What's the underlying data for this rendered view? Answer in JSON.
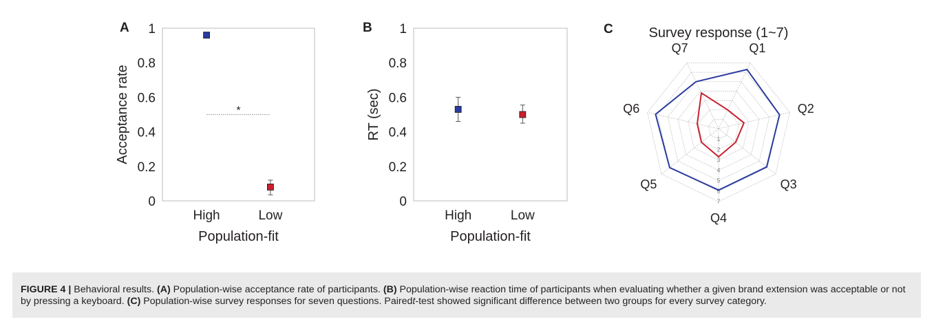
{
  "chart_data": [
    {
      "panel_label": "A",
      "type": "scatter",
      "categories": [
        "High",
        "Low"
      ],
      "series": [
        {
          "category": "High",
          "value": 0.96,
          "error_low": 0.945,
          "error_high": 0.975,
          "color": "#2a3a9e"
        },
        {
          "category": "Low",
          "value": 0.08,
          "error_low": 0.035,
          "error_high": 0.12,
          "color": "#c8202f"
        }
      ],
      "xlabel": "Population-fit",
      "ylabel": "Acceptance rate",
      "ylim": [
        0,
        1
      ],
      "yticks": [
        "0",
        "0.2",
        "0.4",
        "0.6",
        "0.8",
        "1"
      ],
      "significance": {
        "marker": "*",
        "y": 0.5
      },
      "grid": false
    },
    {
      "panel_label": "B",
      "type": "scatter",
      "categories": [
        "High",
        "Low"
      ],
      "series": [
        {
          "category": "High",
          "value": 0.53,
          "error_low": 0.46,
          "error_high": 0.6,
          "color": "#2a3a9e"
        },
        {
          "category": "Low",
          "value": 0.5,
          "error_low": 0.45,
          "error_high": 0.555,
          "color": "#c8202f"
        }
      ],
      "xlabel": "Population-fit",
      "ylabel": "RT (sec)",
      "ylim": [
        0,
        1
      ],
      "yticks": [
        "0",
        "0.2",
        "0.4",
        "0.6",
        "0.8",
        "1"
      ],
      "grid": false
    },
    {
      "panel_label": "C",
      "type": "radar",
      "title": "Survey response (1~7)",
      "axes": [
        "Q1",
        "Q2",
        "Q3",
        "Q4",
        "Q5",
        "Q6",
        "Q7"
      ],
      "rlim": [
        0,
        7
      ],
      "rticks": [
        "1",
        "2",
        "3",
        "4",
        "5",
        "6",
        "7"
      ],
      "series": [
        {
          "values": [
            6.3,
            6.0,
            5.9,
            5.9,
            6.0,
            6.2,
            5.0
          ],
          "color": "#2a3a9e"
        },
        {
          "values": [
            2.0,
            2.5,
            2.1,
            2.7,
            2.1,
            2.1,
            3.8
          ],
          "color": "#c8202f"
        }
      ]
    }
  ],
  "caption": {
    "label": "FIGURE 4 |",
    "title": "Behavioral results.",
    "a_ref": "(A)",
    "a_text": "Population-wise acceptance rate of participants.",
    "b_ref": "(B)",
    "b_text": "Population-wise reaction time of participants when evaluating whether a given brand extension was acceptable or not by pressing a keyboard.",
    "c_ref": "(C)",
    "c_text": "Population-wise survey responses for seven questions. Paired",
    "t_italic": "t",
    "c_text2": "-test showed significant difference between two groups for every survey category."
  }
}
